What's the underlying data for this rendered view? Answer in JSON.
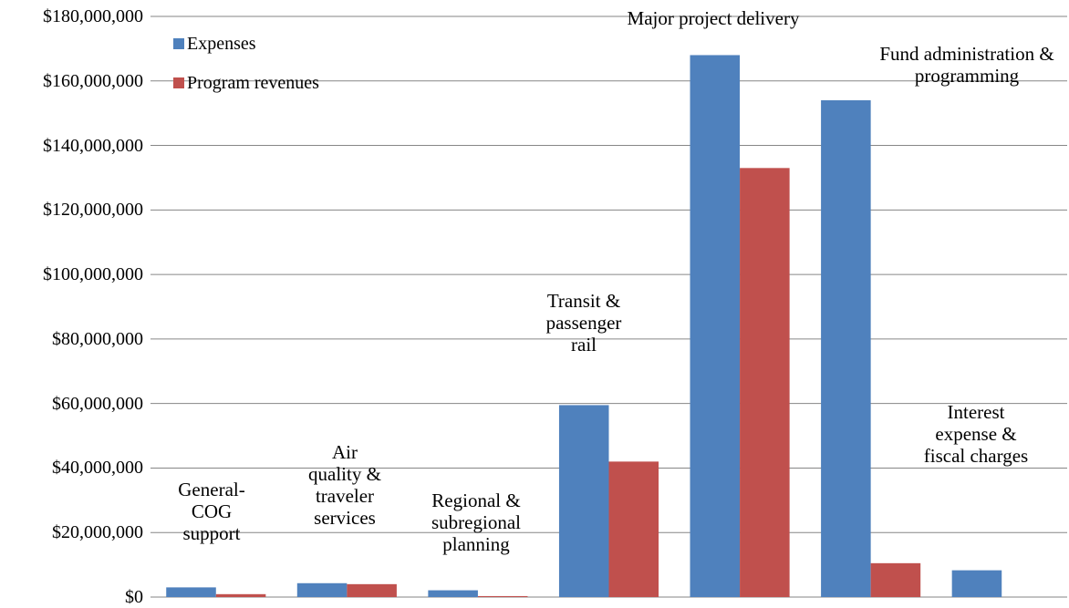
{
  "chart_data": {
    "type": "bar",
    "categories": [
      "General-\nCOG\nsupport",
      "Air\nquality &\ntraveler\nservices",
      "Regional &\nsubregional\nplanning",
      "Transit &\npassenger\nrail",
      "Major project delivery",
      "Fund administration &\nprogramming",
      "Interest\nexpense &\nfiscal charges"
    ],
    "series": [
      {
        "name": "Expenses",
        "color": "#4f81bd",
        "values": [
          3000000,
          4300000,
          2100000,
          59500000,
          168000000,
          154000000,
          8300000
        ]
      },
      {
        "name": "Program revenues",
        "color": "#c0504d",
        "values": [
          900000,
          4000000,
          300000,
          42000000,
          133000000,
          10500000,
          0
        ]
      }
    ],
    "ylim": [
      0,
      180000000
    ],
    "yticks": [
      {
        "value": 0,
        "label": "$0"
      },
      {
        "value": 20000000,
        "label": "$20,000,000"
      },
      {
        "value": 40000000,
        "label": "$40,000,000"
      },
      {
        "value": 60000000,
        "label": "$60,000,000"
      },
      {
        "value": 80000000,
        "label": "$80,000,000"
      },
      {
        "value": 100000000,
        "label": "$100,000,000"
      },
      {
        "value": 120000000,
        "label": "$120,000,000"
      },
      {
        "value": 140000000,
        "label": "$140,000,000"
      },
      {
        "value": 160000000,
        "label": "$160,000,000"
      },
      {
        "value": 180000000,
        "label": "$180,000,000"
      }
    ],
    "grid": true,
    "legend": "top-left"
  }
}
